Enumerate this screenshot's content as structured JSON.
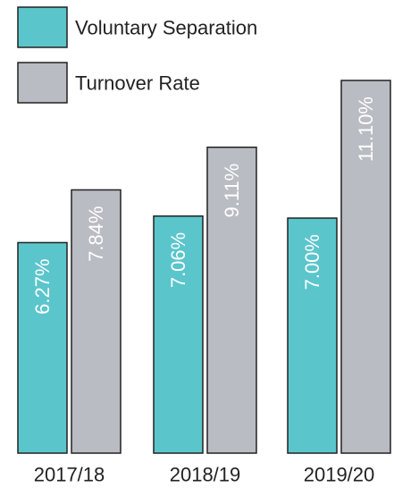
{
  "chart_data": {
    "type": "bar",
    "categories": [
      "2017/18",
      "2018/19",
      "2019/20"
    ],
    "series": [
      {
        "name": "Voluntary Separation",
        "color": "#5bc5cc",
        "values": [
          6.27,
          7.06,
          7.0
        ],
        "value_labels": [
          "6.27%",
          "7.06%",
          "7.00%"
        ]
      },
      {
        "name": "Turnover Rate",
        "color": "#b9bcc2",
        "values": [
          7.84,
          9.11,
          11.1
        ],
        "value_labels": [
          "7.84%",
          "9.11%",
          "11.10%"
        ]
      }
    ]
  }
}
